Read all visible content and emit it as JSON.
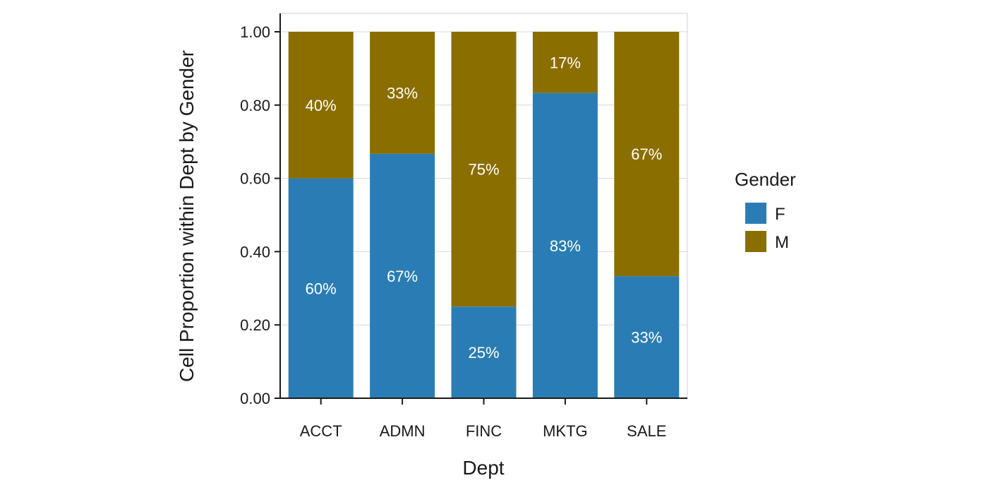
{
  "chart_data": {
    "type": "bar",
    "stacked": true,
    "categories": [
      "ACCT",
      "ADMN",
      "FINC",
      "MKTG",
      "SALE"
    ],
    "series": [
      {
        "name": "F",
        "values": [
          0.6,
          0.667,
          0.25,
          0.833,
          0.333
        ],
        "labels": [
          "60%",
          "67%",
          "25%",
          "83%",
          "33%"
        ],
        "color": "#2a7db4"
      },
      {
        "name": "M",
        "values": [
          0.4,
          0.333,
          0.75,
          0.167,
          0.667
        ],
        "labels": [
          "40%",
          "33%",
          "75%",
          "17%",
          "67%"
        ],
        "color": "#8b6e00"
      }
    ],
    "xlabel": "Dept",
    "ylabel": "Cell Proportion within Dept by Gender",
    "ylim": [
      0,
      1
    ],
    "yticks": [
      0,
      0.2,
      0.4,
      0.6,
      0.8,
      1.0
    ],
    "ytick_labels": [
      "0.00",
      "0.20",
      "0.40",
      "0.60",
      "0.80",
      "1.00"
    ],
    "grid": true,
    "legend": {
      "title": "Gender",
      "placement": "right"
    }
  }
}
